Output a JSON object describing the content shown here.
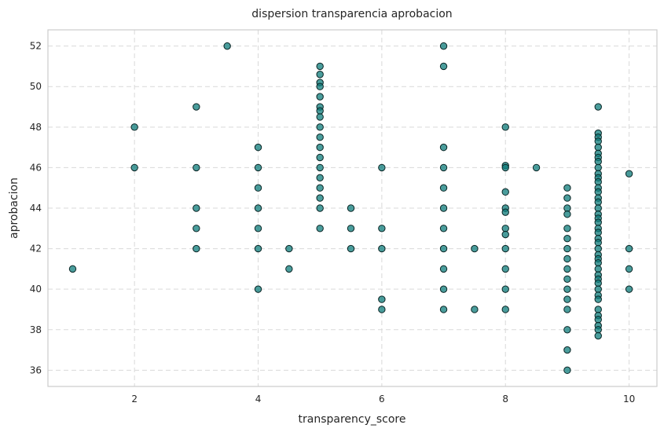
{
  "chart_data": {
    "type": "scatter",
    "title": "dispersion transparencia aprobacion",
    "xlabel": "transparency_score",
    "ylabel": "aprobacion",
    "xlim": [
      0.6,
      10.45
    ],
    "ylim": [
      35.2,
      52.8
    ],
    "xticks": [
      2,
      4,
      6,
      8,
      10
    ],
    "yticks": [
      36,
      38,
      40,
      42,
      44,
      46,
      48,
      50,
      52
    ],
    "grid": true,
    "marker_color": "#0e7c7b",
    "edge_color": "#0a2424",
    "points": [
      [
        1,
        41
      ],
      [
        2,
        48
      ],
      [
        2,
        46
      ],
      [
        3,
        49
      ],
      [
        3,
        46
      ],
      [
        3,
        44
      ],
      [
        3,
        43
      ],
      [
        3,
        42
      ],
      [
        3.5,
        52
      ],
      [
        4,
        47
      ],
      [
        4,
        46
      ],
      [
        4,
        45
      ],
      [
        4,
        44
      ],
      [
        4,
        43
      ],
      [
        4,
        42
      ],
      [
        4,
        40
      ],
      [
        4.5,
        42
      ],
      [
        4.5,
        41
      ],
      [
        5,
        51
      ],
      [
        5,
        50.6
      ],
      [
        5,
        50.2
      ],
      [
        5,
        50
      ],
      [
        5,
        49.5
      ],
      [
        5,
        49
      ],
      [
        5,
        48.8
      ],
      [
        5,
        48.5
      ],
      [
        5,
        48
      ],
      [
        5,
        47.5
      ],
      [
        5,
        47
      ],
      [
        5,
        46.5
      ],
      [
        5,
        46
      ],
      [
        5,
        45.5
      ],
      [
        5,
        45
      ],
      [
        5,
        44.5
      ],
      [
        5,
        44
      ],
      [
        5,
        43
      ],
      [
        5.5,
        44
      ],
      [
        5.5,
        43
      ],
      [
        5.5,
        42
      ],
      [
        6,
        46
      ],
      [
        6,
        43
      ],
      [
        6,
        42
      ],
      [
        6,
        39.5
      ],
      [
        6,
        39
      ],
      [
        7,
        52
      ],
      [
        7,
        51
      ],
      [
        7,
        47
      ],
      [
        7,
        46
      ],
      [
        7,
        45
      ],
      [
        7,
        44
      ],
      [
        7,
        43
      ],
      [
        7,
        42
      ],
      [
        7,
        41
      ],
      [
        7,
        40
      ],
      [
        7,
        39
      ],
      [
        7.5,
        42
      ],
      [
        7.5,
        39
      ],
      [
        8,
        48
      ],
      [
        8,
        46.1
      ],
      [
        8,
        46
      ],
      [
        8,
        44.8
      ],
      [
        8,
        44
      ],
      [
        8,
        43.8
      ],
      [
        8,
        43
      ],
      [
        8,
        42.7
      ],
      [
        8,
        42
      ],
      [
        8,
        41
      ],
      [
        8,
        40
      ],
      [
        8,
        39
      ],
      [
        8.5,
        46
      ],
      [
        9,
        45
      ],
      [
        9,
        44.5
      ],
      [
        9,
        44
      ],
      [
        9,
        43.7
      ],
      [
        9,
        43
      ],
      [
        9,
        42.5
      ],
      [
        9,
        42
      ],
      [
        9,
        41.5
      ],
      [
        9,
        41
      ],
      [
        9,
        40.5
      ],
      [
        9,
        40
      ],
      [
        9,
        39.5
      ],
      [
        9,
        39
      ],
      [
        9,
        38
      ],
      [
        9,
        37
      ],
      [
        9,
        36
      ],
      [
        9.5,
        49
      ],
      [
        9.5,
        47.7
      ],
      [
        9.5,
        47.5
      ],
      [
        9.5,
        47.3
      ],
      [
        9.5,
        47
      ],
      [
        9.5,
        46.7
      ],
      [
        9.5,
        46.5
      ],
      [
        9.5,
        46.3
      ],
      [
        9.5,
        46
      ],
      [
        9.5,
        45.7
      ],
      [
        9.5,
        45.5
      ],
      [
        9.5,
        45.3
      ],
      [
        9.5,
        45
      ],
      [
        9.5,
        44.8
      ],
      [
        9.5,
        44.5
      ],
      [
        9.5,
        44.3
      ],
      [
        9.5,
        44
      ],
      [
        9.5,
        43.7
      ],
      [
        9.5,
        43.5
      ],
      [
        9.5,
        43.3
      ],
      [
        9.5,
        43
      ],
      [
        9.5,
        42.8
      ],
      [
        9.5,
        42.5
      ],
      [
        9.5,
        42.3
      ],
      [
        9.5,
        42
      ],
      [
        9.5,
        41.7
      ],
      [
        9.5,
        41.5
      ],
      [
        9.5,
        41.3
      ],
      [
        9.5,
        41
      ],
      [
        9.5,
        40.7
      ],
      [
        9.5,
        40.5
      ],
      [
        9.5,
        40.3
      ],
      [
        9.5,
        40
      ],
      [
        9.5,
        39.7
      ],
      [
        9.5,
        39.5
      ],
      [
        9.5,
        39
      ],
      [
        9.5,
        38.7
      ],
      [
        9.5,
        38.5
      ],
      [
        9.5,
        38.2
      ],
      [
        9.5,
        38
      ],
      [
        9.5,
        37.7
      ],
      [
        10,
        45.7
      ],
      [
        10,
        42
      ],
      [
        10,
        41
      ],
      [
        10,
        40
      ]
    ]
  }
}
